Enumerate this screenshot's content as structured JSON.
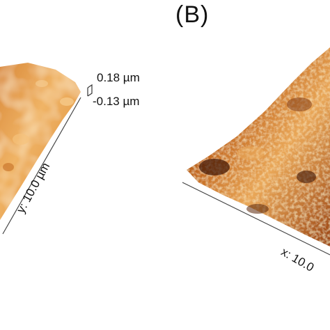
{
  "panel_b": {
    "label": "(B)"
  },
  "panel_a": {
    "z_max": "0.18 µm",
    "z_min": "-0.13 µm",
    "y_axis": "y: 10.0 µm"
  },
  "panel_b_axes": {
    "x_axis": "x: 10.0"
  },
  "colors": {
    "surface_light": "#f2b460",
    "surface_mid": "#c8701e",
    "surface_dark": "#5a2408",
    "axis_line": "#333333"
  }
}
